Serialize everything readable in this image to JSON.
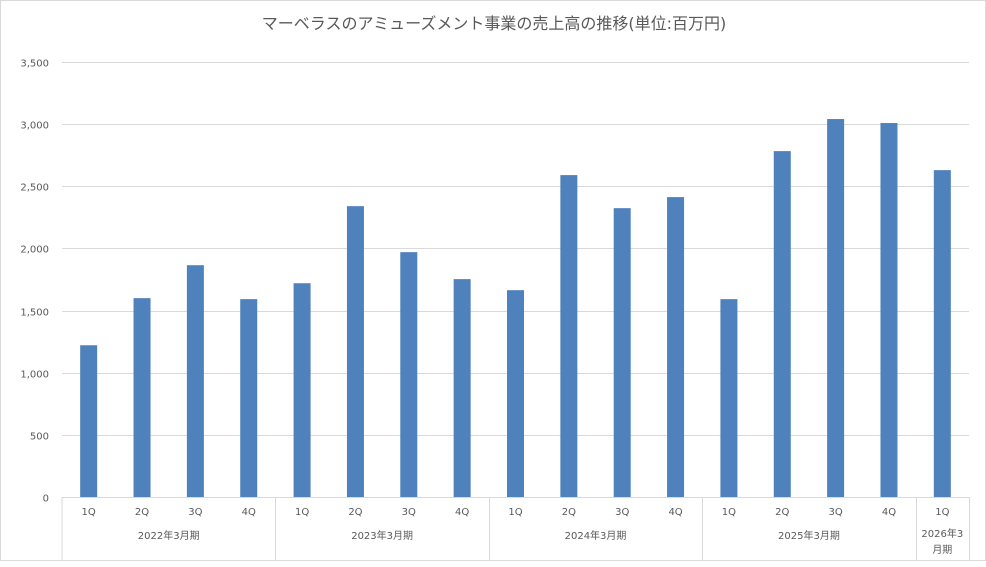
{
  "chart_data": {
    "type": "bar",
    "title": "マーベラスのアミューズメント事業の売上高の推移(単位:百万円)",
    "xlabel": "",
    "ylabel": "",
    "ylim": [
      0,
      3500
    ],
    "yticks": [
      0,
      500,
      1000,
      1500,
      2000,
      2500,
      3000,
      3500
    ],
    "ytick_labels": [
      "0",
      "500",
      "1,000",
      "1,500",
      "2,000",
      "2,500",
      "3,000",
      "3,500"
    ],
    "grid": true,
    "legend": "none",
    "bar_color": "#4f81bd",
    "groups": [
      {
        "label": "2022年3月期",
        "categories": [
          "1Q",
          "2Q",
          "3Q",
          "4Q"
        ]
      },
      {
        "label": "2023年3月期",
        "categories": [
          "1Q",
          "2Q",
          "3Q",
          "4Q"
        ]
      },
      {
        "label": "2024年3月期",
        "categories": [
          "1Q",
          "2Q",
          "3Q",
          "4Q"
        ]
      },
      {
        "label": "2025年3月期",
        "categories": [
          "1Q",
          "2Q",
          "3Q",
          "4Q"
        ]
      },
      {
        "label": "2026年3月期",
        "label_lines": [
          "2026年3",
          "月期"
        ],
        "categories": [
          "1Q"
        ]
      }
    ],
    "values": [
      1221,
      1600,
      1865,
      1592,
      1720,
      2340,
      1970,
      1753,
      1664,
      2590,
      2324,
      2413,
      1592,
      2783,
      3041,
      3009,
      2630
    ]
  }
}
